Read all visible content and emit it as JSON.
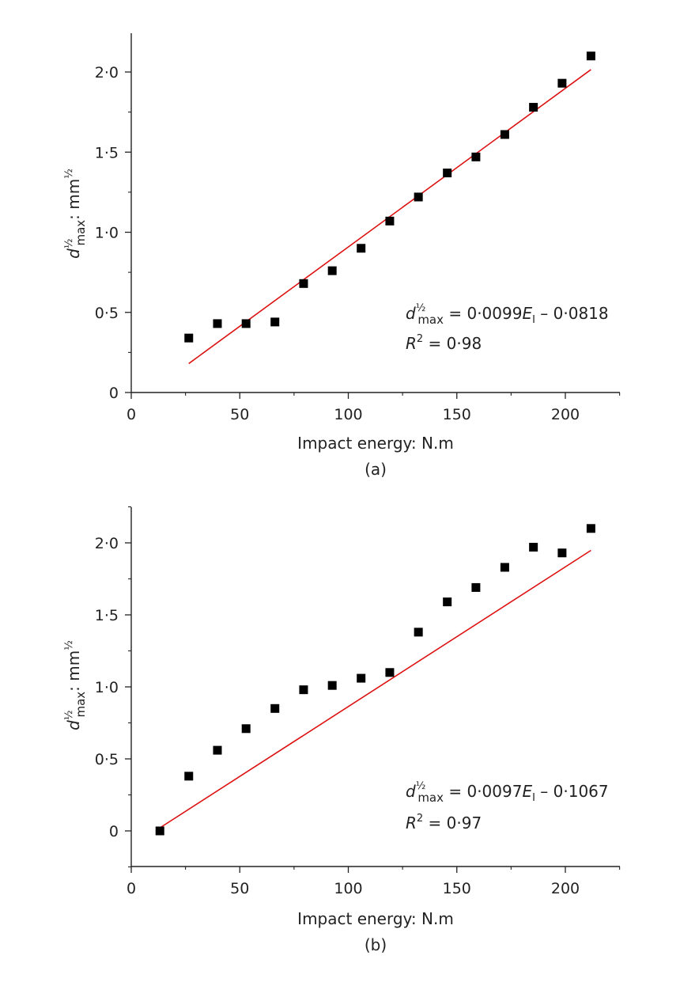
{
  "colors": {
    "points": "#000000",
    "fit_line": "#dd1111",
    "axes": "#222222",
    "text": "#222222"
  },
  "chart_data": [
    {
      "type": "scatter",
      "panel_label": "(a)",
      "xlabel": "Impact energy: N.m",
      "ylabel": {
        "var": "d",
        "sup": "½",
        "sub": "max",
        "rest": ": mm",
        "unit_sup": "½"
      },
      "xlim": [
        0,
        225
      ],
      "ylim": [
        0,
        2.25
      ],
      "x_ticks": [
        0,
        50,
        100,
        150,
        200
      ],
      "x_tick_labels": [
        "0",
        "50",
        "100",
        "150",
        "200"
      ],
      "y_ticks": [
        0,
        0.5,
        1.0,
        1.5,
        2.0
      ],
      "y_tick_labels": [
        "0",
        "0·5",
        "1·0",
        "1·5",
        "2·0"
      ],
      "x": [
        26.5,
        39.7,
        52.9,
        66.2,
        79.4,
        92.6,
        105.9,
        119.1,
        132.3,
        145.6,
        158.8,
        172.1,
        185.3,
        198.5,
        211.8
      ],
      "y": [
        0.34,
        0.43,
        0.43,
        0.44,
        0.68,
        0.76,
        0.9,
        1.07,
        1.22,
        1.37,
        1.47,
        1.61,
        1.78,
        1.93,
        2.1
      ],
      "fit": {
        "slope": 0.0099,
        "intercept": -0.0818,
        "x_range": [
          26.5,
          211.8
        ]
      },
      "equation": {
        "lhs_var": "d",
        "lhs_sup": "½",
        "lhs_sub": "max",
        "eq_prefix": " = 0·0099",
        "e_var": "E",
        "e_sub": "I",
        "eq_suffix": " – 0·0818"
      },
      "r2": {
        "var": "R",
        "sup": "2",
        "value_text": " = 0·98"
      },
      "grid": false
    },
    {
      "type": "scatter",
      "panel_label": "(b)",
      "xlabel": "Impact energy: N.m",
      "ylabel": {
        "var": "d",
        "sup": "½",
        "sub": "max",
        "rest": ": mm",
        "unit_sup": "½"
      },
      "xlim": [
        0,
        225
      ],
      "ylim": [
        -0.25,
        2.25
      ],
      "x_ticks": [
        0,
        50,
        100,
        150,
        200
      ],
      "x_tick_labels": [
        "0",
        "50",
        "100",
        "150",
        "200"
      ],
      "y_ticks": [
        0,
        0.5,
        1.0,
        1.5,
        2.0
      ],
      "y_tick_labels": [
        "0",
        "0·5",
        "1·0",
        "1·5",
        "2·0"
      ],
      "x": [
        13.2,
        26.5,
        39.7,
        52.9,
        66.2,
        79.4,
        92.6,
        105.9,
        119.1,
        132.3,
        145.6,
        158.8,
        172.1,
        185.3,
        198.5,
        211.8
      ],
      "y": [
        0.0,
        0.38,
        0.56,
        0.71,
        0.85,
        0.98,
        1.01,
        1.06,
        1.1,
        1.38,
        1.59,
        1.69,
        1.83,
        1.97,
        1.93,
        2.1
      ],
      "fit": {
        "slope": 0.0097,
        "intercept": -0.1067,
        "x_range": [
          13.2,
          211.8
        ]
      },
      "equation": {
        "lhs_var": "d",
        "lhs_sup": "½",
        "lhs_sub": "max",
        "eq_prefix": " = 0·0097",
        "e_var": "E",
        "e_sub": "I",
        "eq_suffix": " – 0·1067"
      },
      "r2": {
        "var": "R",
        "sup": "2",
        "value_text": " = 0·97"
      },
      "grid": false
    }
  ]
}
